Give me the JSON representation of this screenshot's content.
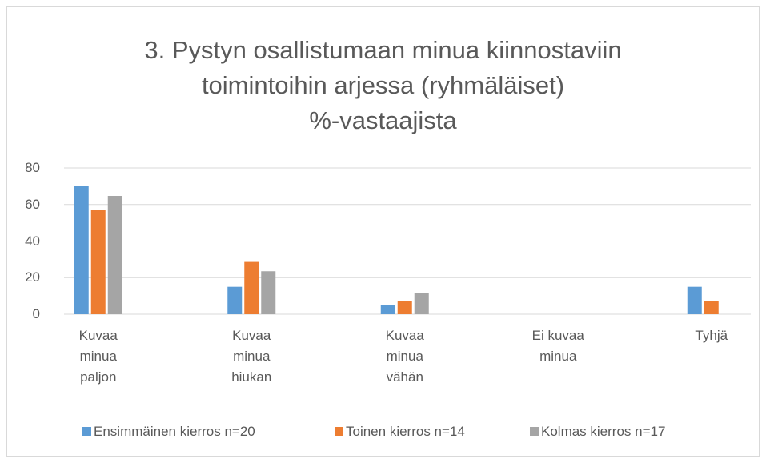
{
  "chart_data": {
    "type": "bar",
    "title": [
      "3. Pystyn osallistumaan minua kiinnostaviin",
      "toimintoihin arjessa (ryhmäläiset)",
      "%-vastaajista"
    ],
    "categories": [
      "Kuvaa minua paljon",
      "Kuvaa minua hiukan",
      "Kuvaa minua vähän",
      "Ei kuvaa minua",
      "Tyhjä"
    ],
    "series": [
      {
        "name": "Ensimmäinen kierros n=20",
        "color": "#5b9bd5",
        "values": [
          70,
          15,
          5,
          0,
          15
        ]
      },
      {
        "name": "Toinen kierros n=14",
        "color": "#ed7d31",
        "values": [
          57.1,
          28.6,
          7.1,
          0,
          7.1
        ]
      },
      {
        "name": "Kolmas kierros n=17",
        "color": "#a5a5a5",
        "values": [
          64.7,
          23.5,
          11.8,
          0,
          0
        ]
      }
    ],
    "ylim": [
      0,
      80
    ],
    "yticks": [
      0,
      20,
      40,
      60,
      80
    ],
    "grid": true,
    "legend": "bottom"
  }
}
